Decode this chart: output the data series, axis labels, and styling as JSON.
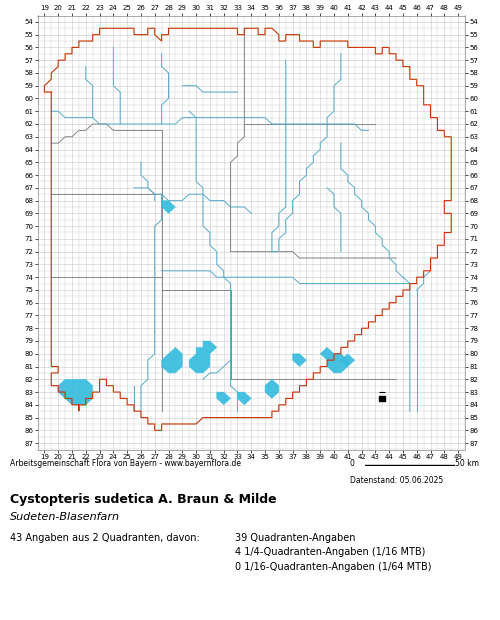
{
  "title": "Cystopteris sudetica A. Braun & Milde",
  "subtitle": "Sudeten-Blasenfarn",
  "footer_left": "Arbeitsgemeinschaft Flora von Bayern - www.bayernflora.de",
  "footer_right": "50 km",
  "footer_scale_label": "0",
  "date_label": "Datenstand: 05.06.2025",
  "stats_line": "43 Angaben aus 2 Quadranten, davon:",
  "stats_right": [
    "39 Quadranten-Angaben",
    "4 1/4-Quadranten-Angaben (1/16 MTB)",
    "0 1/16-Quadranten-Angaben (1/64 MTB)"
  ],
  "x_min": 19,
  "x_max": 49,
  "y_min": 54,
  "y_max": 87,
  "background_color": "#ffffff",
  "grid_color": "#c8c8c8",
  "border_color": "#cc3300",
  "district_color": "#777777",
  "river_color": "#55aacc",
  "lake_color": "#33bbdd",
  "occurrence_fill": "#000000",
  "map_bg": "#ffffff"
}
